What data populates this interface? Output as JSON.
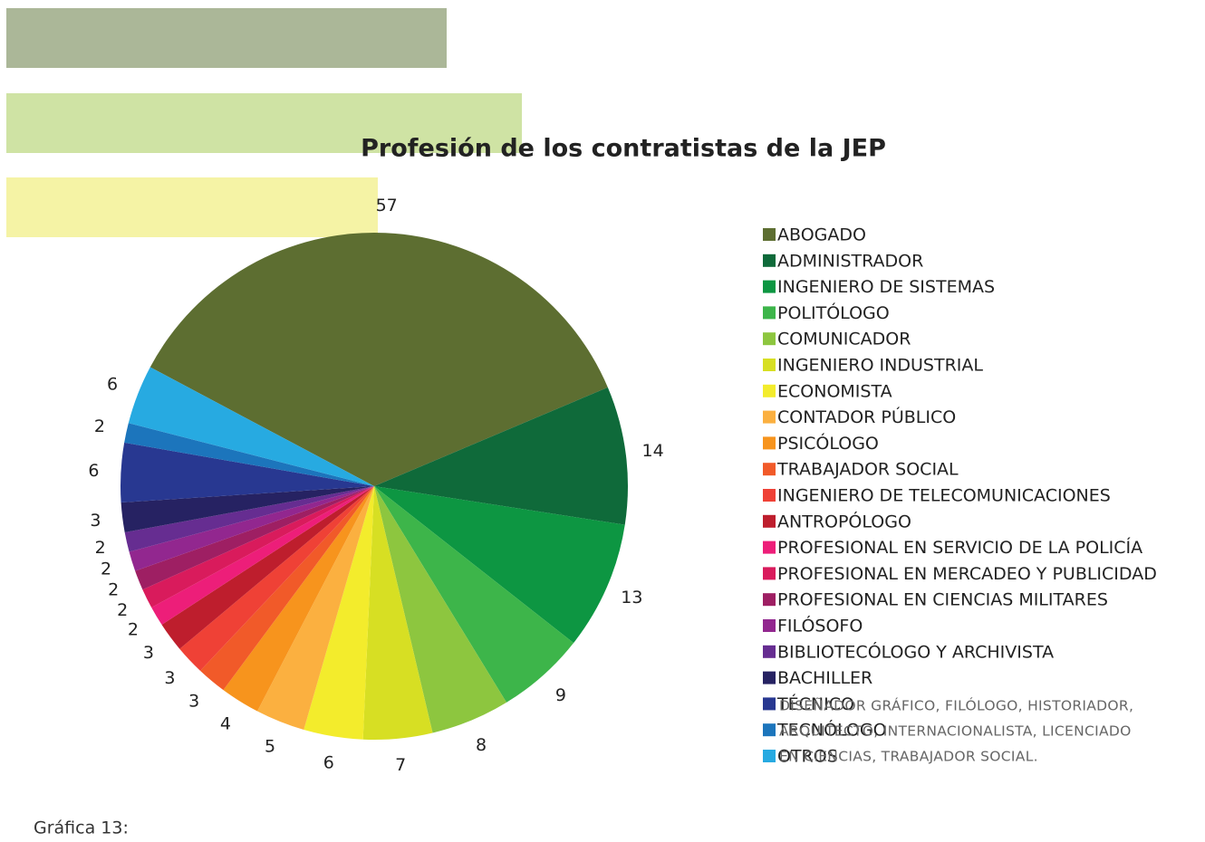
{
  "chart_data": {
    "type": "pie",
    "title": "Profesión de los contratistas de la JEP",
    "caption": "Gráfica 13:",
    "note_lines": [
      "DISEÑADOR GRÁFICO, FILÓLOGO, HISTORIADOR,",
      "ARQUITECTO, INTERNACIONALISTA, LICENCIADO",
      "EN CIENCIAS, TRABAJADOR SOCIAL."
    ],
    "categories": [
      "ABOGADO",
      "ADMINISTRADOR",
      "INGENIERO DE SISTEMAS",
      "POLITÓLOGO",
      "COMUNICADOR",
      "INGENIERO INDUSTRIAL",
      "ECONOMISTA",
      "CONTADOR PÚBLICO",
      "PSICÓLOGO",
      "TRABAJADOR SOCIAL",
      "INGENIERO DE TELECOMUNICACIONES",
      "ANTROPÓLOGO",
      "PROFESIONAL EN SERVICIO DE LA POLICÍA",
      "PROFESIONAL EN MERCADEO  Y PUBLICIDAD",
      "PROFESIONAL EN CIENCIAS MILITARES",
      "FILÓSOFO",
      "BIBLIOTECÓLOGO Y ARCHIVISTA",
      "BACHILLER",
      "TÉCNICO",
      "TECNÓLOGO",
      "OTROS"
    ],
    "values": [
      57,
      14,
      13,
      9,
      8,
      7,
      6,
      5,
      4,
      3,
      3,
      3,
      2,
      2,
      2,
      2,
      2,
      3,
      6,
      2,
      6
    ],
    "colors": [
      "#5d6e31",
      "#0f6a3a",
      "#0d9642",
      "#3db54a",
      "#8dc63f",
      "#d7df23",
      "#f3ec2c",
      "#fbb040",
      "#f7941d",
      "#f15a29",
      "#ef4136",
      "#be1e2d",
      "#ed1e79",
      "#d91b5c",
      "#9e1f63",
      "#92278f",
      "#662d91",
      "#262262",
      "#283891",
      "#1c75bc",
      "#27aae1"
    ]
  }
}
